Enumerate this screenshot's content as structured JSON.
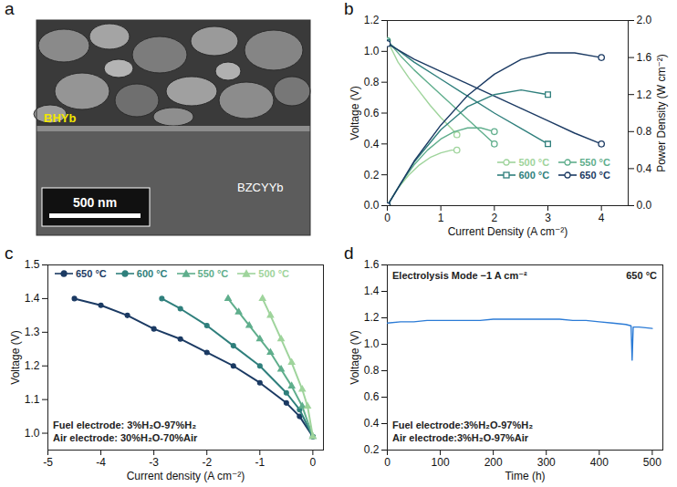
{
  "chart_data": [
    {
      "panel": "a",
      "type": "image",
      "annotations": [
        "BHYb",
        "BZCYYb",
        "500 nm"
      ]
    },
    {
      "panel": "b",
      "type": "line",
      "x_label": "Current Density (A cm⁻²)",
      "y_label": "Voltage (V)",
      "y2_label": "Power Density (W cm⁻²)",
      "xlim": [
        0,
        4.5
      ],
      "xticks": [
        0,
        1,
        2,
        3,
        4
      ],
      "ylim": [
        0,
        1.2
      ],
      "yticks": [
        {
          "value": 0,
          "label": "0.0"
        },
        0.2,
        0.4,
        0.6,
        0.8,
        {
          "value": 1,
          "label": "1.0"
        },
        1.2
      ],
      "y2lim": [
        0,
        2
      ],
      "y2ticks": [
        {
          "value": 0,
          "label": "0.0"
        },
        0.4,
        0.8,
        1.2,
        1.6,
        {
          "value": 2,
          "label": "2.0"
        }
      ],
      "legend": "bottom-right",
      "series": [
        {
          "name": "500 °C",
          "color": "#9fd49c",
          "marker": "circle",
          "line_style": "solid",
          "x": [
            0,
            0.2,
            0.4,
            0.6,
            0.8,
            1.0,
            1.2,
            1.3
          ],
          "values": [
            1.07,
            0.93,
            0.83,
            0.74,
            0.65,
            0.57,
            0.5,
            0.46
          ]
        },
        {
          "name": "550 °C",
          "color": "#5fae8c",
          "marker": "circle",
          "line_style": "solid",
          "x": [
            0,
            0.25,
            0.5,
            0.75,
            1,
            1.25,
            1.5,
            1.75,
            2
          ],
          "values": [
            1.07,
            0.97,
            0.88,
            0.8,
            0.72,
            0.64,
            0.56,
            0.48,
            0.4
          ]
        },
        {
          "name": "600 °C",
          "color": "#2f7f7c",
          "marker": "square",
          "line_style": "solid",
          "x": [
            0,
            0.5,
            1,
            1.5,
            2,
            2.5,
            3
          ],
          "values": [
            1.06,
            0.93,
            0.82,
            0.71,
            0.6,
            0.5,
            0.4
          ]
        },
        {
          "name": "650 °C",
          "color": "#1b3a63",
          "marker": "circle",
          "line_style": "solid",
          "x": [
            0,
            0.5,
            1,
            1.5,
            2,
            2.5,
            3,
            3.5,
            4
          ],
          "values": [
            1.05,
            0.95,
            0.87,
            0.79,
            0.71,
            0.63,
            0.55,
            0.47,
            0.4
          ]
        },
        {
          "color": "#9fd49c",
          "axis": "y2",
          "marker": "circle",
          "line_style": "solid",
          "x": [
            0,
            0.2,
            0.4,
            0.6,
            0.8,
            1.0,
            1.2,
            1.3
          ],
          "values": [
            0,
            0.19,
            0.33,
            0.44,
            0.52,
            0.57,
            0.6,
            0.6
          ]
        },
        {
          "color": "#5fae8c",
          "axis": "y2",
          "marker": "circle",
          "line_style": "solid",
          "x": [
            0,
            0.25,
            0.5,
            0.75,
            1,
            1.25,
            1.5,
            1.75,
            2
          ],
          "values": [
            0,
            0.24,
            0.44,
            0.6,
            0.72,
            0.8,
            0.84,
            0.84,
            0.8
          ]
        },
        {
          "color": "#2f7f7c",
          "axis": "y2",
          "marker": "square",
          "line_style": "solid",
          "x": [
            0,
            0.5,
            1,
            1.5,
            2,
            2.5,
            3
          ],
          "values": [
            0,
            0.47,
            0.82,
            1.07,
            1.2,
            1.25,
            1.2
          ]
        },
        {
          "color": "#1b3a63",
          "axis": "y2",
          "marker": "circle",
          "line_style": "solid",
          "x": [
            0,
            0.5,
            1,
            1.5,
            2,
            2.5,
            3,
            3.5,
            4
          ],
          "values": [
            0,
            0.48,
            0.87,
            1.19,
            1.42,
            1.58,
            1.65,
            1.65,
            1.6
          ]
        }
      ]
    },
    {
      "panel": "c",
      "type": "line",
      "x_label": "Current density (A cm⁻²)",
      "y_label": "Voltage (V)",
      "xlim": [
        -5,
        0.2
      ],
      "xticks": [
        -5,
        -4,
        -3,
        -2,
        -1,
        0
      ],
      "ylim": [
        0.95,
        1.5
      ],
      "yticks": [
        {
          "value": 1,
          "label": "1.0"
        },
        1.1,
        1.2,
        1.3,
        1.4,
        1.5
      ],
      "legend": "top-left",
      "annotations": [
        "Fuel electrode: 3%H₂O-97%H₂",
        "Air electrode: 30%H₂O-70%Air"
      ],
      "series": [
        {
          "name": "650 °C",
          "color": "#1b3a63",
          "marker": "circle",
          "line_style": "solid",
          "x": [
            0,
            -0.25,
            -0.5,
            -1,
            -1.5,
            -2,
            -2.5,
            -3,
            -3.5,
            -4,
            -4.5
          ],
          "values": [
            0.99,
            1.05,
            1.09,
            1.15,
            1.2,
            1.24,
            1.28,
            1.31,
            1.35,
            1.38,
            1.4
          ]
        },
        {
          "name": "600 °C",
          "color": "#2f7f7c",
          "marker": "circle",
          "line_style": "solid",
          "x": [
            0,
            -0.25,
            -0.5,
            -1,
            -1.5,
            -2,
            -2.5,
            -2.85
          ],
          "values": [
            0.99,
            1.07,
            1.12,
            1.2,
            1.26,
            1.32,
            1.37,
            1.4
          ]
        },
        {
          "name": "550 °C",
          "color": "#5fae8c",
          "marker": "triangle",
          "line_style": "solid",
          "x": [
            0,
            -0.2,
            -0.4,
            -0.6,
            -0.8,
            -1,
            -1.2,
            -1.4,
            -1.6
          ],
          "values": [
            0.99,
            1.08,
            1.14,
            1.19,
            1.24,
            1.28,
            1.32,
            1.36,
            1.4
          ]
        },
        {
          "name": "500 °C",
          "color": "#9fd49c",
          "marker": "triangle",
          "line_style": "solid",
          "x": [
            0,
            -0.1,
            -0.2,
            -0.4,
            -0.6,
            -0.8,
            -0.95
          ],
          "values": [
            0.99,
            1.08,
            1.13,
            1.21,
            1.28,
            1.35,
            1.4
          ]
        }
      ]
    },
    {
      "panel": "d",
      "type": "line",
      "x_label": "Time (h)",
      "y_label": "Voltage (V)",
      "xlim": [
        0,
        520
      ],
      "xticks": [
        0,
        100,
        200,
        300,
        400,
        500
      ],
      "ylim": [
        0.2,
        1.6
      ],
      "yticks": [
        0.2,
        0.4,
        0.6,
        0.8,
        {
          "value": 1,
          "label": "1.0"
        },
        1.2,
        1.4,
        1.6
      ],
      "annotations": [
        "Electrolysis Mode −1 A cm⁻²",
        "650 °C",
        "Fuel electrode:3%H₂O-97%H₂",
        "Air electrode:3%H₂O-97%Air"
      ],
      "series": [
        {
          "color": "#2b7bd6",
          "line_style": "solid",
          "x": [
            0,
            25,
            50,
            75,
            100,
            125,
            150,
            175,
            200,
            225,
            250,
            275,
            300,
            325,
            350,
            375,
            400,
            425,
            450,
            460,
            462,
            464,
            475,
            500
          ],
          "values": [
            1.16,
            1.17,
            1.17,
            1.18,
            1.18,
            1.18,
            1.18,
            1.18,
            1.19,
            1.19,
            1.19,
            1.19,
            1.19,
            1.19,
            1.18,
            1.18,
            1.17,
            1.16,
            1.15,
            1.14,
            0.88,
            1.13,
            1.13,
            1.12
          ]
        }
      ]
    }
  ]
}
